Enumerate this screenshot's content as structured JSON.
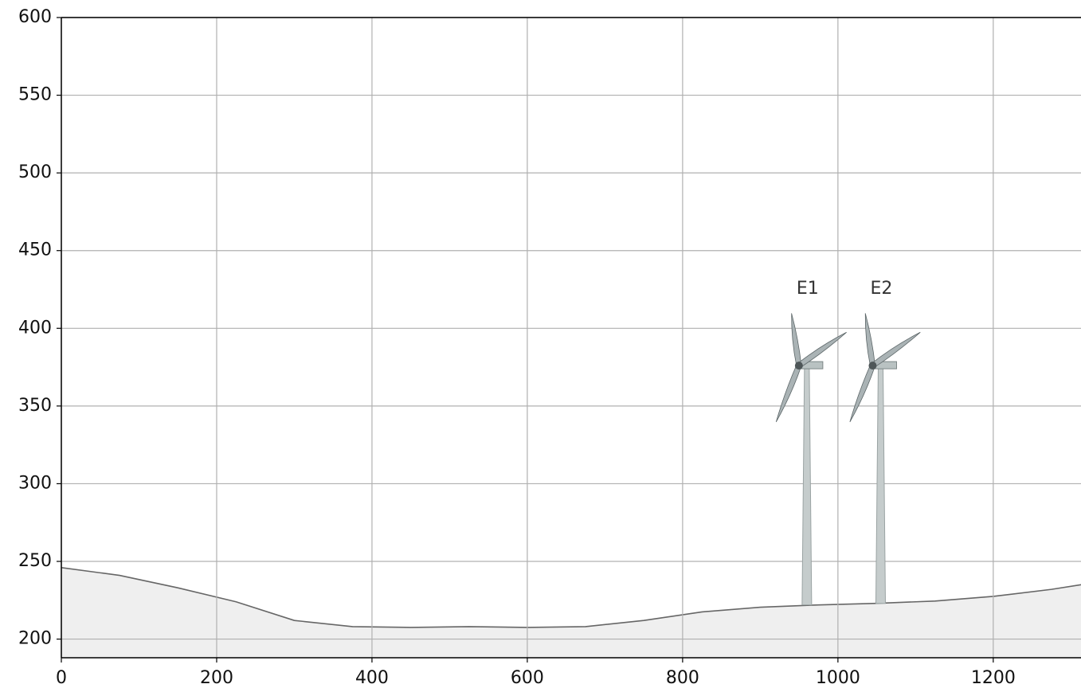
{
  "chart_data": {
    "type": "area",
    "x": [
      0,
      75,
      150,
      225,
      300,
      375,
      450,
      525,
      600,
      675,
      750,
      825,
      900,
      975,
      1050,
      1125,
      1200,
      1275,
      1313
    ],
    "values": [
      246,
      241,
      233,
      224,
      212,
      208,
      207.5,
      208,
      207.5,
      208,
      212,
      217.5,
      220.5,
      222,
      223,
      224.5,
      227.5,
      232,
      235
    ],
    "color": "#efefef",
    "line_color": "#666666",
    "xlim": [
      0,
      1313
    ],
    "ylim": [
      188,
      600
    ],
    "xticks": [
      0,
      200,
      400,
      600,
      800,
      1000,
      1200
    ],
    "yticks": [
      200,
      250,
      300,
      350,
      400,
      450,
      500,
      550,
      600
    ],
    "grid": true,
    "turbines": [
      {
        "label": "E1",
        "x": 960,
        "base": 222,
        "hub": 376,
        "tip": 410
      },
      {
        "label": "E2",
        "x": 1055,
        "base": 223,
        "hub": 376,
        "tip": 410
      }
    ]
  }
}
